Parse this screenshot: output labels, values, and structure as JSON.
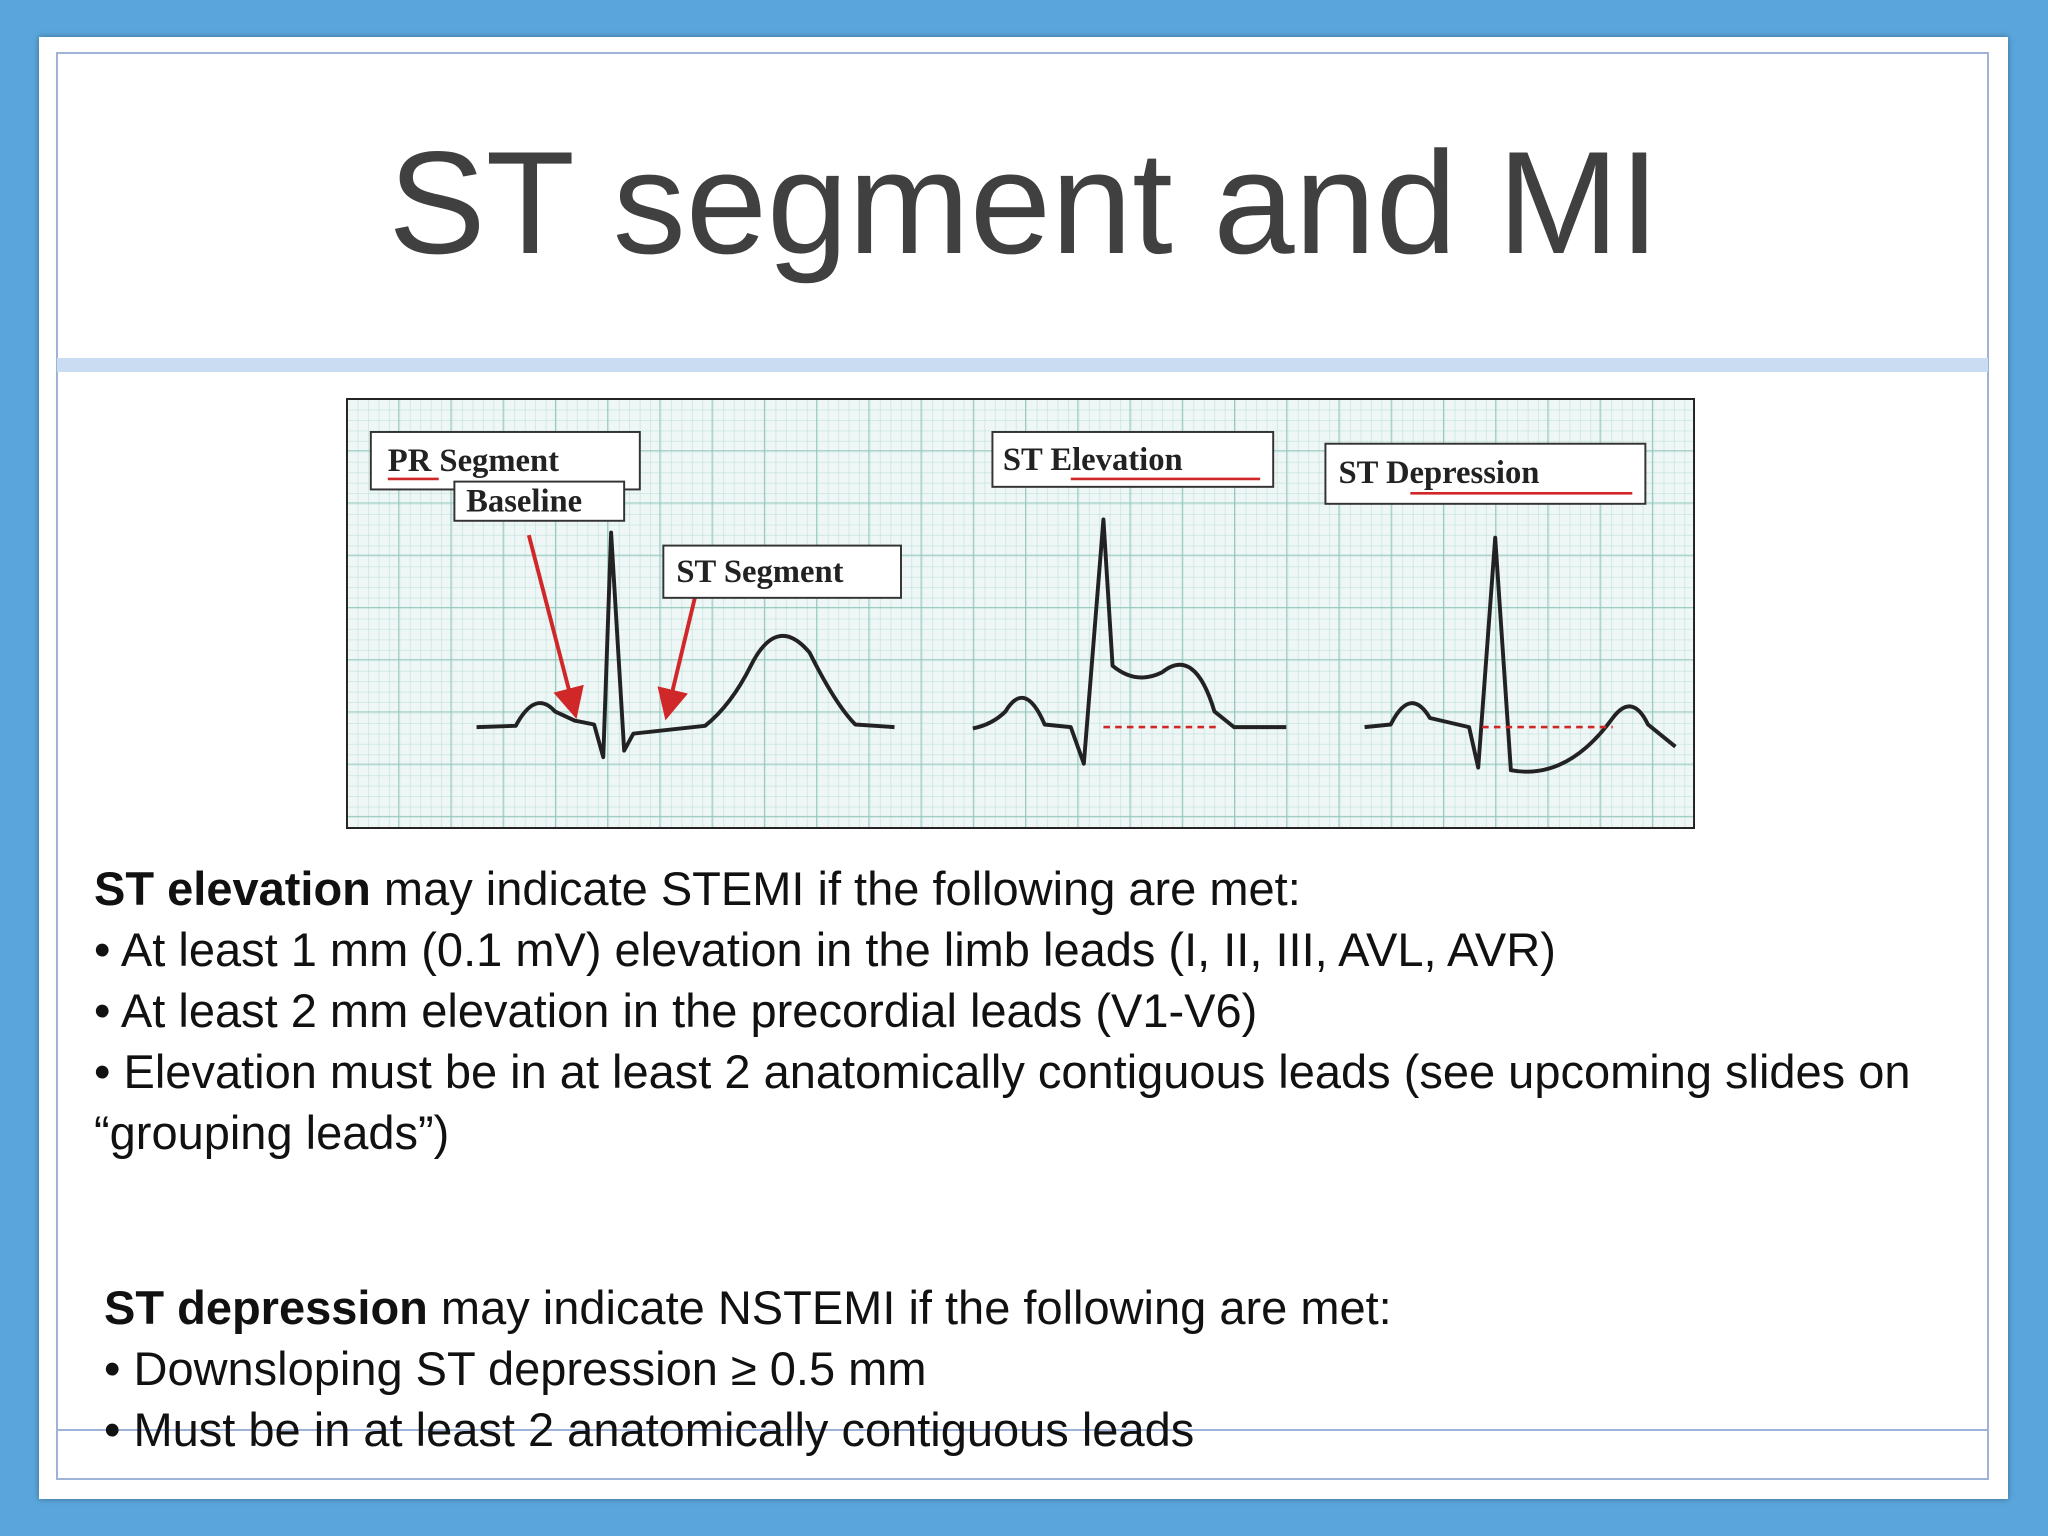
{
  "title": "ST segment and MI",
  "figure": {
    "labels": {
      "pr_segment": "PR Segment",
      "baseline": "Baseline",
      "st_segment": "ST Segment",
      "st_elevation": "ST Elevation",
      "st_depression": "ST Depression"
    }
  },
  "sections": [
    {
      "lead_bold": "ST elevation",
      "lead_rest": "may indicate STEMI if the following are met:",
      "bullets": [
        "• At least 1 mm (0.1 mV) elevation in the limb leads (I, II, III, AVL, AVR)",
        "• At least 2 mm elevation in the precordial leads (V1-V6)",
        "• Elevation must be in at least 2 anatomically contiguous leads (see upcoming slides on “grouping leads”)"
      ]
    },
    {
      "lead_bold": "ST depression",
      "lead_rest": "may indicate NSTEMI if the following are met:",
      "bullets": [
        "• Downsloping ST depression ≥ 0.5 mm",
        "• Must be in at least 2 anatomically contiguous leads"
      ]
    }
  ]
}
